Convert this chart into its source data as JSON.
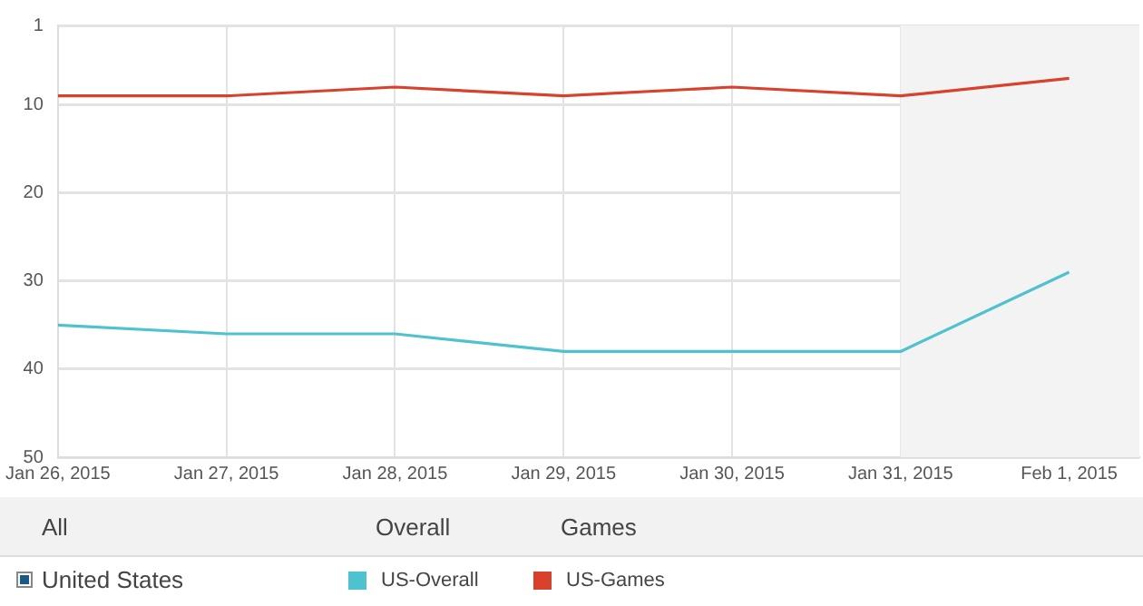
{
  "chart_data": {
    "type": "line",
    "x": [
      "2015-01-26",
      "2015-01-27",
      "2015-01-28",
      "2015-01-29",
      "2015-01-30",
      "2015-01-31",
      "2015-02-01"
    ],
    "series": [
      {
        "name": "US-Overall",
        "color": "#4ec3cf",
        "values": [
          35,
          36,
          36,
          38,
          38,
          38,
          29
        ]
      },
      {
        "name": "US-Games",
        "color": "#d8412b",
        "values": [
          9,
          9,
          8,
          9,
          8,
          9,
          7
        ]
      }
    ],
    "xlim": [
      "2015-01-26",
      "2015-02-01T10:00"
    ],
    "xticks": [
      {
        "value": "2015-01-26",
        "label": "Jan 26, 2015"
      },
      {
        "value": "2015-01-27",
        "label": "Jan 27, 2015"
      },
      {
        "value": "2015-01-28",
        "label": "Jan 28, 2015"
      },
      {
        "value": "2015-01-29",
        "label": "Jan 29, 2015"
      },
      {
        "value": "2015-01-30",
        "label": "Jan 30, 2015"
      },
      {
        "value": "2015-01-31",
        "label": "Jan 31, 2015"
      },
      {
        "value": "2015-02-01",
        "label": "Feb 1, 2015"
      }
    ],
    "ylim": [
      50,
      1
    ],
    "yticks": [
      1,
      10,
      20,
      30,
      40,
      50
    ],
    "bands": [
      {
        "axis": "x",
        "from": "2015-01-31",
        "to": "2015-02-01T10:00",
        "color": "#f3f3f3"
      }
    ],
    "grid": true,
    "legend": "bottom",
    "marker": "none",
    "line_style": "solid",
    "annotations": [
      "All",
      "Overall",
      "Games",
      "United States"
    ]
  }
}
